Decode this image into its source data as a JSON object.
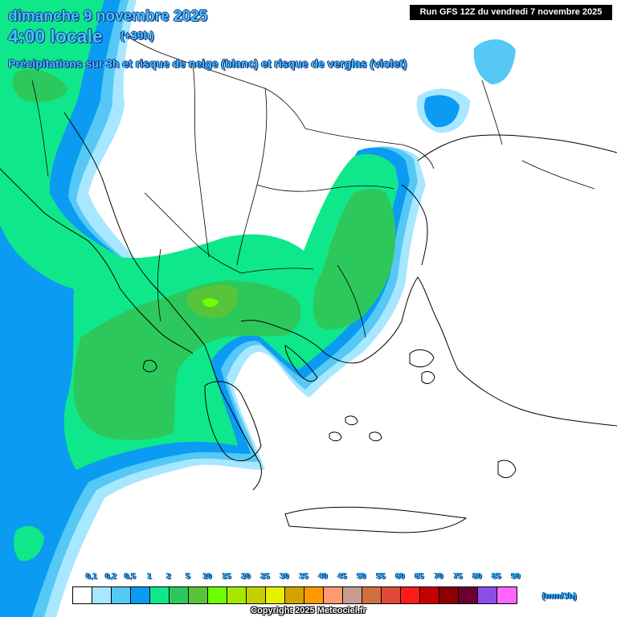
{
  "header": {
    "date": "dimanche 9 novembre 2025",
    "time": "4:00 locale",
    "lead": "(+39h)",
    "description": "Précipitations sur 3h et risque de neige (blanc) et risque de verglas (violet)"
  },
  "run_info": "Run GFS 12Z du vendredi 7 novembre 2025",
  "legend": {
    "unit": "(mm/3h)",
    "ticks": [
      "0,1",
      "0,2",
      "0,5",
      "1",
      "2",
      "5",
      "10",
      "15",
      "20",
      "25",
      "30",
      "35",
      "40",
      "45",
      "50",
      "55",
      "60",
      "65",
      "70",
      "75",
      "80",
      "85",
      "90"
    ],
    "colors": [
      "#ffffff",
      "#a7e7ff",
      "#55c8f5",
      "#0b9bf2",
      "#0ee88a",
      "#2dc85c",
      "#58c43a",
      "#6eff00",
      "#a5e700",
      "#c6cf00",
      "#e3f000",
      "#d5a300",
      "#ff9900",
      "#ff9a73",
      "#c89c94",
      "#d07040",
      "#e04a3a",
      "#ff1a1a",
      "#c40000",
      "#8b0000",
      "#6b0030",
      "#8a50e6",
      "#ff66ff"
    ]
  },
  "map_colors": {
    "land": "#ffffff",
    "border": "#000000",
    "precip_0_1": "#a7e7ff",
    "precip_0_2": "#55c8f5",
    "precip_0_5": "#0b9bf2",
    "precip_1": "#0ee88a",
    "precip_2": "#2dc85c",
    "precip_5": "#58c43a",
    "precip_10": "#6eff00"
  },
  "copyright": "Copyright 2025 Meteociel.fr"
}
